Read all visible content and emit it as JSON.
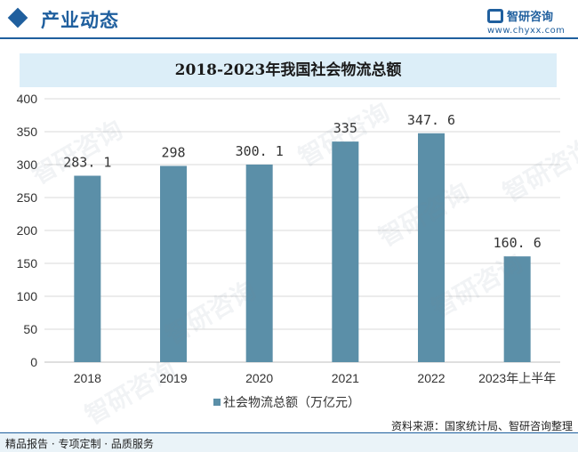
{
  "header": {
    "title": "产业动态"
  },
  "logo": {
    "name": "智研咨询",
    "url": "www.chyxx.com"
  },
  "footer": {
    "left": "精品报告 · 专项定制 · 品质服务",
    "source": "资料来源：国家统计局、智研咨询整理"
  },
  "watermark": "智研咨询",
  "chart_data": {
    "type": "bar",
    "title": "2018-2023年我国社会物流总额",
    "categories": [
      "2018",
      "2019",
      "2020",
      "2021",
      "2022",
      "2023年上半年"
    ],
    "series": [
      {
        "name": "社会物流总额（万亿元）",
        "values": [
          283.1,
          298,
          300.1,
          335,
          347.6,
          160.6
        ],
        "labels": [
          "283. 1",
          "298",
          "300. 1",
          "335",
          "347. 6",
          "160. 6"
        ]
      }
    ],
    "ylim": [
      0,
      400
    ],
    "yticks": [
      0,
      50,
      100,
      150,
      200,
      250,
      300,
      350,
      400
    ],
    "grid": true,
    "legend": "bottom",
    "colors": {
      "bar": "#5b8fa8",
      "grid": "#d9d9d9",
      "axis": "#bfbfbf"
    }
  }
}
